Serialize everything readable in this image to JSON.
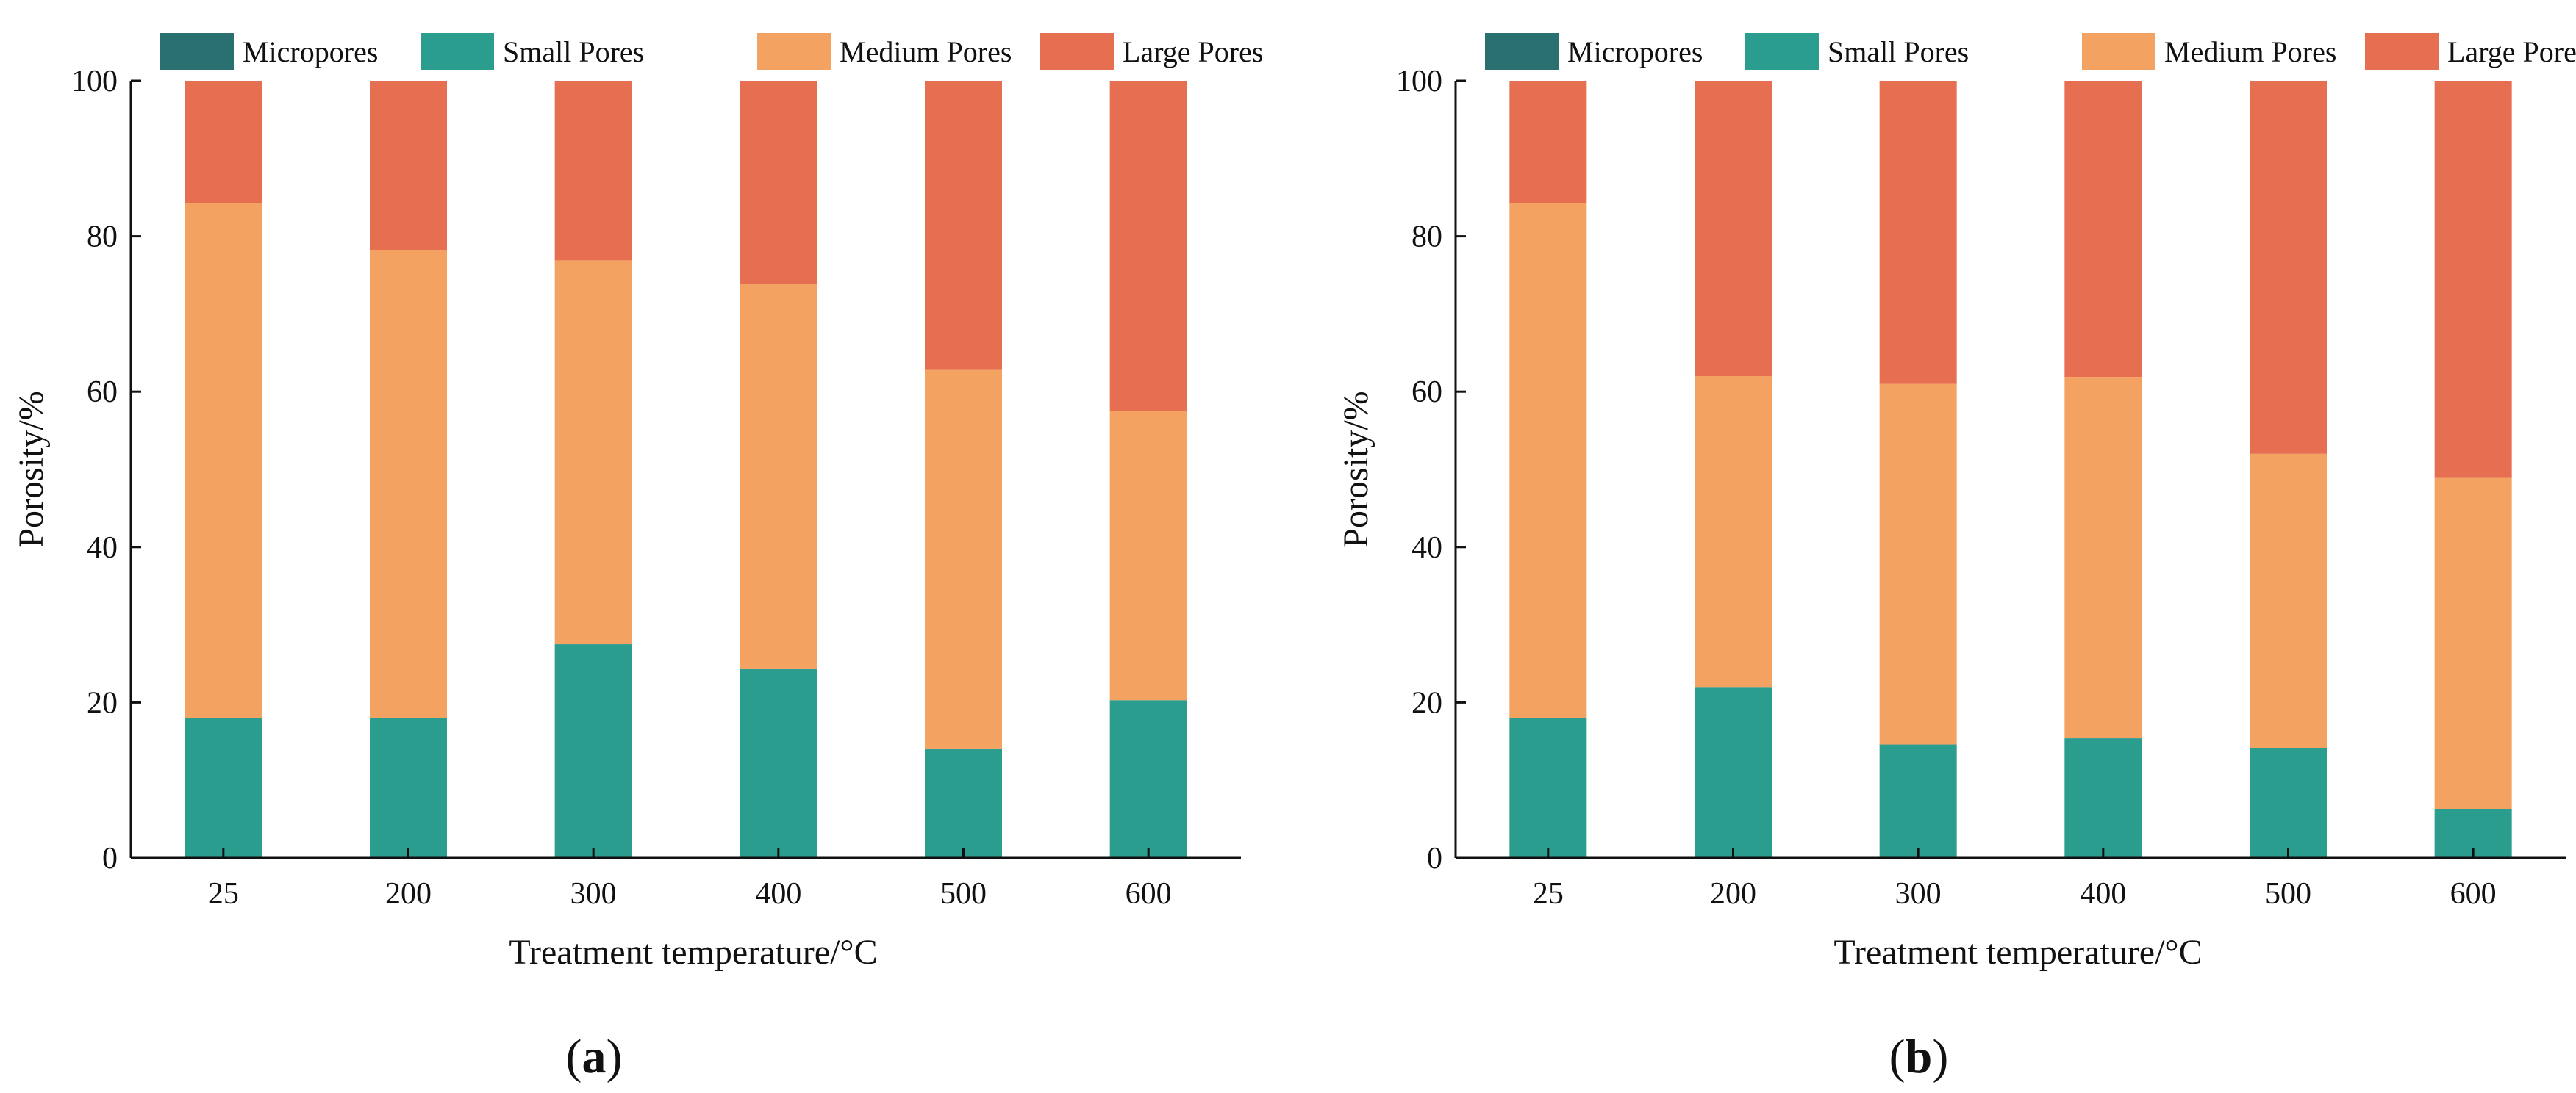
{
  "chart_data": [
    {
      "type": "bar",
      "stacked": true,
      "panel_label": "a",
      "categories": [
        "25",
        "200",
        "300",
        "400",
        "500",
        "600"
      ],
      "series": [
        {
          "name": "Micropores",
          "values": [
            0,
            0,
            0,
            0,
            0,
            0
          ]
        },
        {
          "name": "Small Pores",
          "values": [
            18,
            18,
            27.5,
            24.3,
            14,
            20.3
          ]
        },
        {
          "name": "Medium Pores",
          "values": [
            66.3,
            60.2,
            49.4,
            49.6,
            48.8,
            37.2
          ]
        },
        {
          "name": "Large Pores",
          "values": [
            15.7,
            21.8,
            23.1,
            26.1,
            37.2,
            42.5
          ]
        }
      ],
      "xlabel": "Treatment temperature/°C",
      "ylabel": "Porosity/%",
      "ylim": [
        0,
        100
      ],
      "yticks": [
        "0",
        "20",
        "40",
        "60",
        "80",
        "100"
      ],
      "legend": "top"
    },
    {
      "type": "bar",
      "stacked": true,
      "panel_label": "b",
      "categories": [
        "25",
        "200",
        "300",
        "400",
        "500",
        "600"
      ],
      "series": [
        {
          "name": "Micropores",
          "values": [
            0,
            0,
            0,
            0,
            0,
            0
          ]
        },
        {
          "name": "Small Pores",
          "values": [
            18,
            22,
            14.6,
            15.4,
            14.1,
            6.3
          ]
        },
        {
          "name": "Medium Pores",
          "values": [
            66.3,
            40,
            46.4,
            46.5,
            37.9,
            42.6
          ]
        },
        {
          "name": "Large Pores",
          "values": [
            15.7,
            38,
            39,
            38.1,
            48,
            51.1
          ]
        }
      ],
      "xlabel": "Treatment temperature/°C",
      "ylabel": "Porosity/%",
      "ylim": [
        0,
        100
      ],
      "yticks": [
        "0",
        "20",
        "40",
        "60",
        "80",
        "100"
      ],
      "legend": "top"
    }
  ],
  "colors": {
    "Micropores": "#2a7070",
    "Small Pores": "#2a9d8f",
    "Medium Pores": "#f4a261",
    "Large Pores": "#e76f51",
    "axis": "#111111"
  }
}
